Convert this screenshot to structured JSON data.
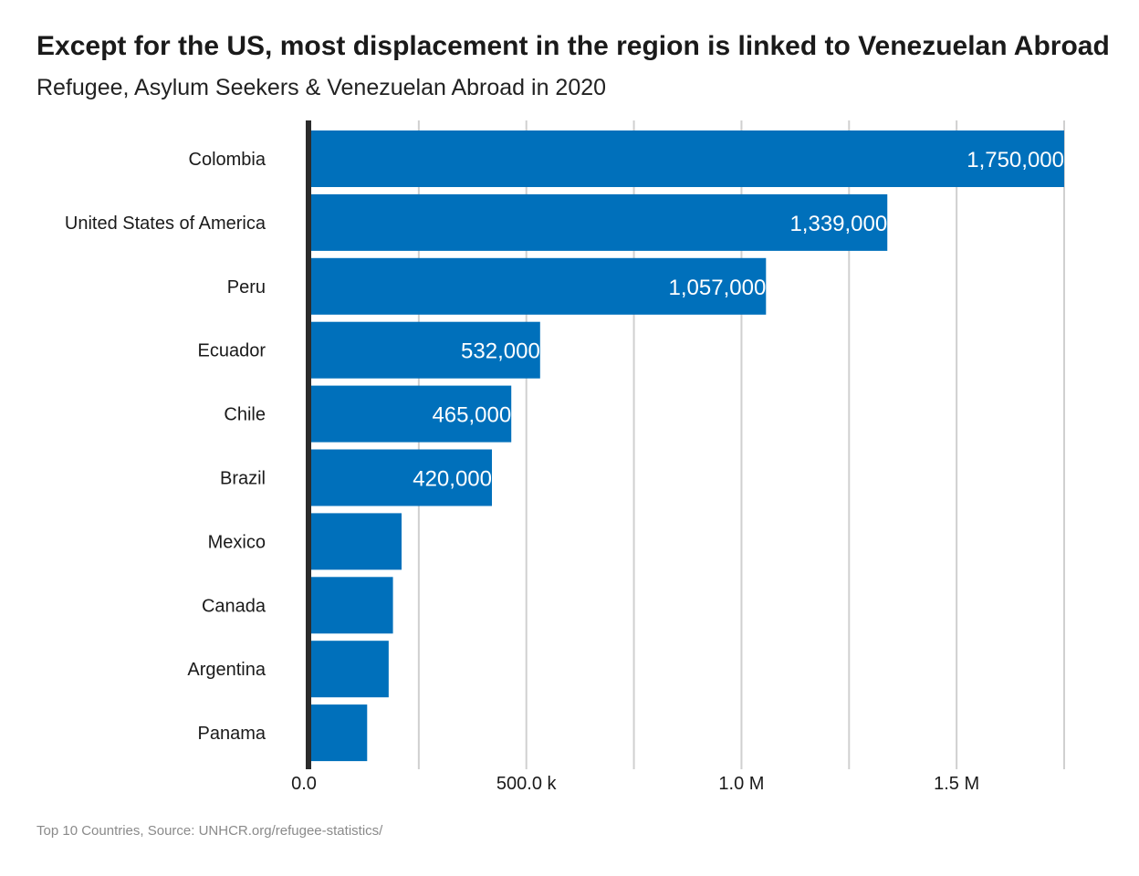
{
  "chart_data": {
    "type": "bar",
    "orientation": "horizontal",
    "title": "Except for the US, most displacement in the region is linked to Venezuelan Abroad",
    "subtitle": "Refugee, Asylum Seekers & Venezuelan Abroad in 2020",
    "categories": [
      "Colombia",
      "United States of America",
      "Peru",
      "Ecuador",
      "Chile",
      "Brazil",
      "Mexico",
      "Canada",
      "Argentina",
      "Panama"
    ],
    "values": [
      1750000,
      1339000,
      1057000,
      532000,
      465000,
      420000,
      210000,
      190000,
      180000,
      130000
    ],
    "data_labels": [
      "1,750,000",
      "1,339,000",
      "1,057,000",
      "532,000",
      "465,000",
      "420,000",
      null,
      null,
      null,
      null
    ],
    "x_ticks": [
      0,
      500000,
      1000000,
      1500000
    ],
    "x_tick_labels": [
      "0.0",
      "500.0 k",
      "1.0 M",
      "1.5 M"
    ],
    "x_gridlines": [
      0,
      250000,
      500000,
      750000,
      1000000,
      1250000,
      1500000,
      1750000
    ],
    "xlim": [
      0,
      1750000
    ],
    "xlabel": "",
    "ylabel": "",
    "grid": true,
    "legend": "none",
    "bar_color": "#0070bb",
    "grid_color": "#d0d0d0",
    "axis_color": "#2b2b2b"
  },
  "footnote": "Top 10 Countries, Source: UNHCR.org/refugee-statistics/"
}
